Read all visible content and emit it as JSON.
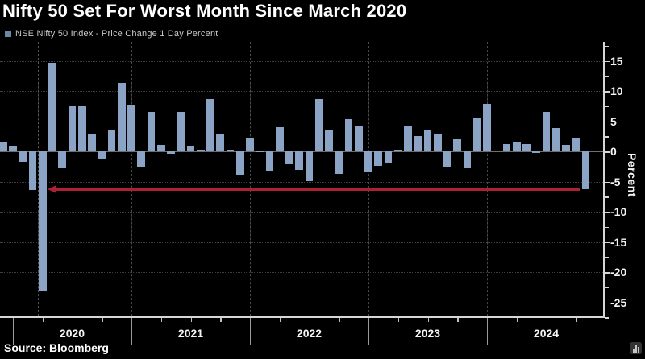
{
  "title": "Nifty 50 Set For Worst Month Since March 2020",
  "legend": {
    "label": "NSE Nifty 50 Index - Price Change 1 Day Percent"
  },
  "source": "Source: Bloomberg",
  "colors": {
    "background": "#000000",
    "bar": "#8ba3c4",
    "legend_marker": "#6c87a8",
    "axis": "#d6d6d6",
    "grid": "#3e3e3e",
    "year_line": "#4b4b4b",
    "zero_line": "#6e6e6e",
    "text": "#f4f4f4",
    "arrow": "#ad2233"
  },
  "chart_data": {
    "type": "bar",
    "title": "Nifty 50 Set For Worst Month Since March 2020",
    "series_name": "NSE Nifty 50 Index - Price Change 1 Day Percent",
    "xlabel": "",
    "ylabel": "Percent",
    "ylim": [
      -27.5,
      18.1
    ],
    "yticks": [
      15,
      10,
      5,
      0,
      -5,
      -10,
      -15,
      -20,
      -25
    ],
    "ytick_minor_step": 2.5,
    "grid": "horizontal dotted at 5-unit intervals, vertical dashed at year starts",
    "legend_position": "top-left",
    "x_year_labels": [
      "2020",
      "2021",
      "2022",
      "2023",
      "2024"
    ],
    "categories": [
      "Nov 2019",
      "Dec 2019",
      "Jan 2020",
      "Feb 2020",
      "Mar 2020",
      "Apr 2020",
      "May 2020",
      "Jun 2020",
      "Jul 2020",
      "Aug 2020",
      "Sep 2020",
      "Oct 2020",
      "Nov 2020",
      "Dec 2020",
      "Jan 2021",
      "Feb 2021",
      "Mar 2021",
      "Apr 2021",
      "May 2021",
      "Jun 2021",
      "Jul 2021",
      "Aug 2021",
      "Sep 2021",
      "Oct 2021",
      "Nov 2021",
      "Dec 2021",
      "Jan 2022",
      "Feb 2022",
      "Mar 2022",
      "Apr 2022",
      "May 2022",
      "Jun 2022",
      "Jul 2022",
      "Aug 2022",
      "Sep 2022",
      "Oct 2022",
      "Nov 2022",
      "Dec 2022",
      "Jan 2023",
      "Feb 2023",
      "Mar 2023",
      "Apr 2023",
      "May 2023",
      "Jun 2023",
      "Jul 2023",
      "Aug 2023",
      "Sep 2023",
      "Oct 2023",
      "Nov 2023",
      "Dec 2023",
      "Jan 2024",
      "Feb 2024",
      "Mar 2024",
      "Apr 2024",
      "May 2024",
      "Jun 2024",
      "Jul 2024",
      "Aug 2024",
      "Sep 2024",
      "Oct 2024"
    ],
    "values": [
      1.5,
      0.9,
      -1.7,
      -6.4,
      -23.2,
      14.7,
      -2.8,
      7.5,
      7.5,
      2.8,
      -1.2,
      3.5,
      11.4,
      7.8,
      -2.5,
      6.6,
      1.1,
      -0.4,
      6.5,
      0.9,
      0.3,
      8.7,
      2.8,
      0.3,
      -3.9,
      2.2,
      -0.1,
      -3.2,
      4.0,
      -2.1,
      -3.0,
      -4.9,
      8.7,
      3.5,
      -3.7,
      5.4,
      4.1,
      -3.5,
      -2.4,
      -2.0,
      0.3,
      4.1,
      2.6,
      3.5,
      2.9,
      -2.5,
      2.0,
      -2.8,
      5.5,
      7.9,
      0.0,
      1.2,
      1.6,
      1.2,
      -0.3,
      6.6,
      3.9,
      1.1,
      2.3,
      -6.2
    ],
    "annotations": {
      "arrow": {
        "y": -6.2,
        "from": "Oct 2024",
        "to": "Mar 2020",
        "direction": "left"
      },
      "vline_month": "Mar 2020"
    }
  }
}
